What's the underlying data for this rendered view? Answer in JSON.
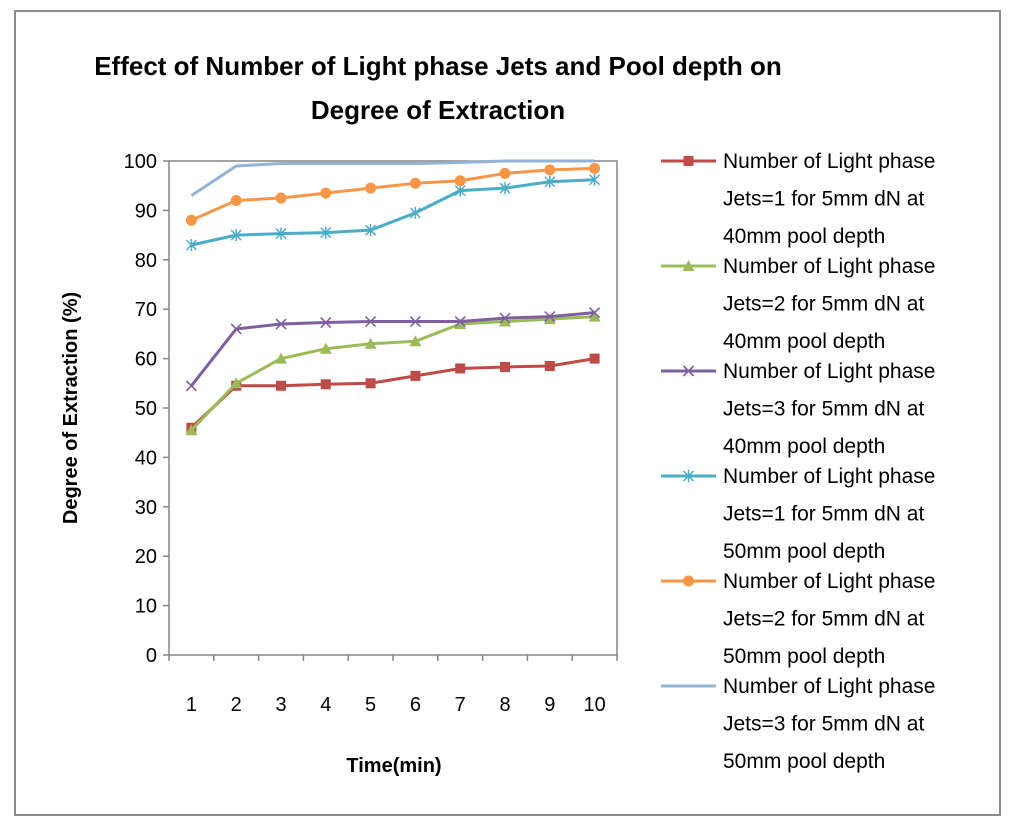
{
  "chart_data": {
    "type": "line",
    "title": [
      "Effect of Number of Light phase Jets and Pool depth on",
      "Degree of Extraction"
    ],
    "xlabel": "Time(min)",
    "ylabel": "Degree of Extraction (%)",
    "categories": [
      "1",
      "2",
      "3",
      "4",
      "5",
      "6",
      "7",
      "8",
      "9",
      "10"
    ],
    "ylim": [
      0,
      100
    ],
    "yticks": [
      "0",
      "10",
      "20",
      "30",
      "40",
      "50",
      "60",
      "70",
      "80",
      "90",
      "100"
    ],
    "grid": false,
    "legend_position": "right",
    "series": [
      {
        "name": [
          "Number of Light phase",
          "Jets=1 for 5mm dN at",
          "40mm pool depth"
        ],
        "color": "#be4b48",
        "marker": "square",
        "values": [
          46,
          54.5,
          54.5,
          54.8,
          55,
          56.5,
          58,
          58.3,
          58.5,
          60
        ]
      },
      {
        "name": [
          "Number of Light phase",
          "Jets=2 for 5mm dN at",
          "40mm pool depth"
        ],
        "color": "#9bbb59",
        "marker": "triangle",
        "values": [
          45.5,
          55,
          60,
          62,
          63,
          63.5,
          67,
          67.5,
          68,
          68.5
        ]
      },
      {
        "name": [
          "Number of Light phase",
          "Jets=3 for 5mm dN at",
          "40mm pool depth"
        ],
        "color": "#7f5fa0",
        "marker": "x",
        "values": [
          54.5,
          66,
          67,
          67.3,
          67.5,
          67.5,
          67.5,
          68.2,
          68.5,
          69.3
        ]
      },
      {
        "name": [
          "Number of Light phase",
          "Jets=1 for 5mm dN at",
          "50mm pool depth"
        ],
        "color": "#4bacc6",
        "marker": "star",
        "values": [
          83,
          85,
          85.3,
          85.5,
          86,
          89.5,
          94,
          94.5,
          95.8,
          96.2
        ]
      },
      {
        "name": [
          "Number of Light phase",
          "Jets=2 for 5mm dN  at",
          "50mm pool depth"
        ],
        "color": "#f79646",
        "marker": "circle",
        "values": [
          88,
          92,
          92.5,
          93.5,
          94.5,
          95.5,
          96,
          97.5,
          98.2,
          98.5
        ]
      },
      {
        "name": [
          "Number of Light phase",
          "Jets=3 for 5mm dN at",
          "50mm pool depth"
        ],
        "color": "#95b3d7",
        "marker": "none",
        "values": [
          93,
          99,
          99.5,
          99.5,
          99.5,
          99.5,
          99.7,
          100,
          100,
          100
        ]
      }
    ]
  }
}
